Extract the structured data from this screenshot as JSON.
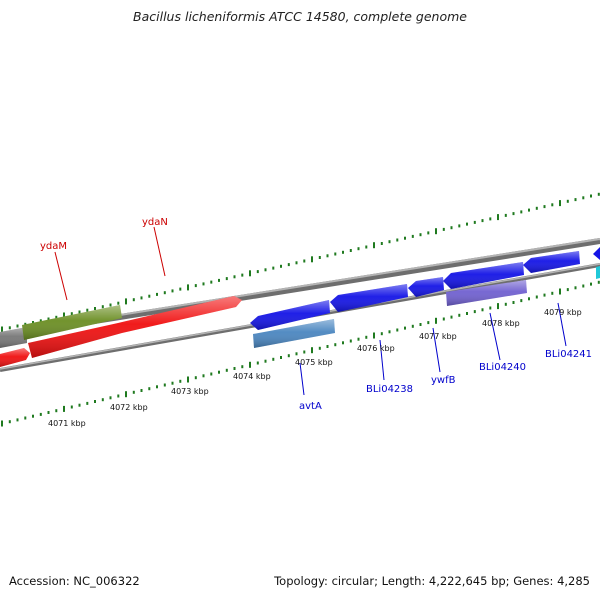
{
  "title": "Bacillus licheniformis ATCC 14580, complete genome",
  "footer": {
    "accession_label": "Accession: NC_006322",
    "summary": "Topology: circular; Length: 4,222,645 bp; Genes: 4,285"
  },
  "colors": {
    "backbone": "#8a8a8a",
    "tick": "#1f7a1f",
    "plus_gene_label": "#cc0000",
    "minus_gene_label": "#0000cc",
    "red": "#f01010",
    "olive": "#6b8e23",
    "blue": "#1414e6",
    "steel": "#4a86c0",
    "violet": "#7060d0",
    "cyan": "#20c8d8",
    "gray": "#777777"
  },
  "scale_labels": [
    {
      "text": "4071 kbp",
      "kbp": 4071
    },
    {
      "text": "4072 kbp",
      "kbp": 4072
    },
    {
      "text": "4073 kbp",
      "kbp": 4073
    },
    {
      "text": "4074 kbp",
      "kbp": 4074
    },
    {
      "text": "4075 kbp",
      "kbp": 4075
    },
    {
      "text": "4076 kbp",
      "kbp": 4076
    },
    {
      "text": "4077 kbp",
      "kbp": 4077
    },
    {
      "text": "4078 kbp",
      "kbp": 4078
    },
    {
      "text": "4079 kbp",
      "kbp": 4079
    }
  ],
  "gene_labels": [
    {
      "text": "ydaM",
      "strand": "plus"
    },
    {
      "text": "ydaN",
      "strand": "plus"
    },
    {
      "text": "avtA",
      "strand": "minus"
    },
    {
      "text": "BLi04238",
      "strand": "minus"
    },
    {
      "text": "ywfB",
      "strand": "minus"
    },
    {
      "text": "BLi04240",
      "strand": "minus"
    },
    {
      "text": "BLi04241",
      "strand": "minus"
    }
  ]
}
